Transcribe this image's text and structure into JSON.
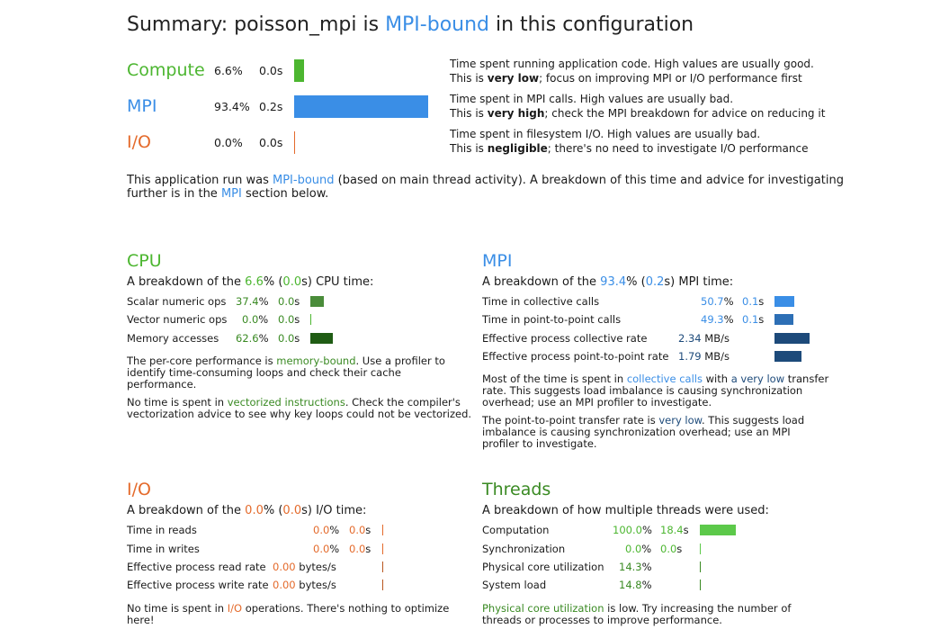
{
  "title": {
    "prefix": "Summary: poisson_mpi is ",
    "bound": "MPI-bound",
    "suffix": " in this configuration"
  },
  "summary": {
    "rows": [
      {
        "name": "Compute",
        "pct": "6.6%",
        "time": "0.0s",
        "bar_fraction": 0.066,
        "color": "#4cb630",
        "desc1": "Time spent running application code. High values are usually good.",
        "desc2_pre": "This is ",
        "desc2_bold": "very low",
        "desc2_post": "; focus on improving MPI or I/O performance first"
      },
      {
        "name": "MPI",
        "pct": "93.4%",
        "time": "0.2s",
        "bar_fraction": 0.934,
        "color": "#3a8ee6",
        "desc1": "Time spent in MPI calls. High values are usually bad.",
        "desc2_pre": "This is ",
        "desc2_bold": "very high",
        "desc2_post": "; check the MPI breakdown for advice on reducing it"
      },
      {
        "name": "I/O",
        "pct": "0.0%",
        "time": "0.0s",
        "bar_fraction": 0.0,
        "color": "#e46a2b",
        "desc1": "Time spent in filesystem I/O. High values are usually bad.",
        "desc2_pre": "This is ",
        "desc2_bold": "negligible",
        "desc2_post": "; there's no need to investigate I/O performance"
      }
    ],
    "para": {
      "t1": "This application run was ",
      "link1": "MPI-bound",
      "t2": " (based on main thread activity). A breakdown of this time and advice for investigating",
      "t3": "further is in the ",
      "link2": "MPI",
      "t4": " section below."
    }
  },
  "cpu": {
    "heading": "CPU",
    "intro": {
      "pre": "A breakdown of the ",
      "pct": "6.6",
      "mid1": "% (",
      "time": "0.0",
      "mid2": "s) CPU time:"
    },
    "rows": [
      {
        "label": "Scalar numeric ops",
        "pct": "37.4",
        "time": "0.0",
        "bar_fraction": 0.374,
        "color": "#4a8c3a"
      },
      {
        "label": "Vector numeric ops",
        "pct": "0.0",
        "time": "0.0",
        "bar_fraction": 0.0,
        "color": "#4cb630"
      },
      {
        "label": "Memory accesses",
        "pct": "62.6",
        "time": "0.0",
        "bar_fraction": 0.626,
        "color": "#1f5c14"
      }
    ],
    "note1": {
      "t1": "The per-core performance is ",
      "link": "memory-bound",
      "t2": ". Use a profiler to",
      "t3": "identify time-consuming loops and check their cache",
      "t4": "performance."
    },
    "note2": {
      "t1": "No time is spent in ",
      "link": "vectorized instructions",
      "t2": ". Check the compiler's",
      "t3": "vectorization advice to see why key loops could not be vectorized."
    }
  },
  "mpi": {
    "heading": "MPI",
    "intro": {
      "pre": "A breakdown of the ",
      "pct": "93.4",
      "mid1": "% (",
      "time": "0.2",
      "mid2": "s) MPI time:"
    },
    "rows": [
      {
        "label": "Time in collective calls",
        "pct": "50.7",
        "time": "0.1",
        "bar_fraction": 0.507,
        "color": "#3a8ee6"
      },
      {
        "label": "Time in point-to-point calls",
        "pct": "49.3",
        "time": "0.1",
        "bar_fraction": 0.493,
        "color": "#2d6fb5"
      },
      {
        "label": "Effective process collective rate",
        "rate": "2.34",
        "unit": "MB/s",
        "bar_fraction": 0.9,
        "color": "#1d4a7a"
      },
      {
        "label": "Effective process point-to-point rate",
        "rate": "1.79",
        "unit": "MB/s",
        "bar_fraction": 0.7,
        "color": "#1d4a7a"
      }
    ],
    "note1": {
      "t1": "Most of the time is spent in ",
      "link1": "collective calls",
      "t2": " with ",
      "link2": "a very low",
      "t3": " transfer",
      "t4": "rate. This suggests load imbalance is causing synchronization",
      "t5": "overhead; use an MPI profiler to investigate."
    },
    "note2": {
      "t1": "The point-to-point transfer rate is ",
      "link": "very low",
      "t2": ". This suggests load",
      "t3": "imbalance is causing synchronization overhead; use an MPI",
      "t4": "profiler to investigate."
    }
  },
  "io": {
    "heading": "I/O",
    "intro": {
      "pre": "A breakdown of the ",
      "pct": "0.0",
      "mid1": "% (",
      "time": "0.0",
      "mid2": "s) I/O time:"
    },
    "rows": [
      {
        "label": "Time in reads",
        "pct": "0.0",
        "time": "0.0"
      },
      {
        "label": "Time in writes",
        "pct": "0.0",
        "time": "0.0"
      },
      {
        "label": "Effective process read rate",
        "rate": "0.00",
        "unit": "bytes/s"
      },
      {
        "label": "Effective process write rate",
        "rate": "0.00",
        "unit": "bytes/s"
      }
    ],
    "note": {
      "t1": "No time is spent in ",
      "link": "I/O",
      "t2": " operations. There's nothing to optimize",
      "t3": "here!"
    }
  },
  "threads": {
    "heading": "Threads",
    "intro": "A breakdown of how multiple threads were used:",
    "rows": [
      {
        "label": "Computation",
        "pct": "100.0",
        "time": "18.4",
        "bar_fraction": 1.0,
        "color": "#5cc94a"
      },
      {
        "label": "Synchronization",
        "pct": "0.0",
        "time": "0.0",
        "bar_fraction": 0.0,
        "color": "#5cc94a"
      },
      {
        "label": "Physical core utilization",
        "pct": "14.3",
        "bar_fraction": 0.143,
        "color": "#3a8a23"
      },
      {
        "label": "System load",
        "pct": "14.8",
        "bar_fraction": 0.148,
        "color": "#3a8a23"
      }
    ],
    "note": {
      "link": "Physical core utilization",
      "t1": " is low. Try increasing the number of",
      "t2": "threads or processes to improve performance."
    }
  }
}
